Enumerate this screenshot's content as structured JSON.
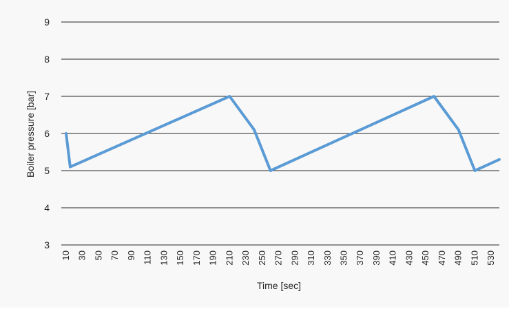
{
  "chart_data": {
    "type": "line",
    "title": "",
    "xlabel": "Time [sec]",
    "ylabel": "Boiler pressure [bar]",
    "ylim": [
      3,
      9
    ],
    "yticks": [
      3,
      4,
      5,
      6,
      7,
      8,
      9
    ],
    "xticks": [
      10,
      30,
      50,
      70,
      90,
      110,
      130,
      150,
      170,
      190,
      210,
      230,
      250,
      270,
      290,
      310,
      330,
      350,
      370,
      390,
      410,
      430,
      450,
      470,
      490,
      510,
      530
    ],
    "grid": "horizontal",
    "legend": "none",
    "series": [
      {
        "color": "#5b9bd5",
        "points": [
          {
            "x": 10,
            "y": 6.0
          },
          {
            "x": 15,
            "y": 5.1
          },
          {
            "x": 210,
            "y": 7.0
          },
          {
            "x": 240,
            "y": 6.1
          },
          {
            "x": 260,
            "y": 5.0
          },
          {
            "x": 460,
            "y": 7.0
          },
          {
            "x": 490,
            "y": 6.1
          },
          {
            "x": 510,
            "y": 5.0
          },
          {
            "x": 540,
            "y": 5.3
          }
        ]
      }
    ]
  }
}
